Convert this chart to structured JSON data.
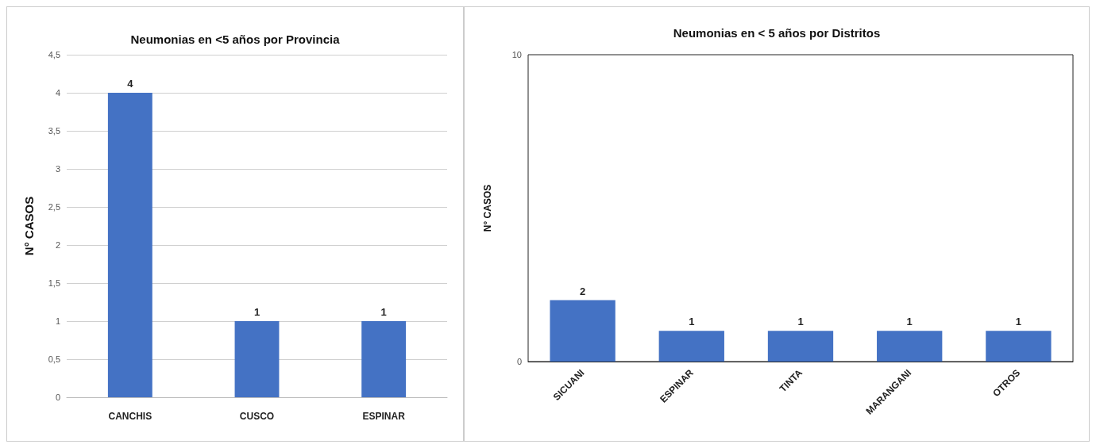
{
  "chart_data": [
    {
      "type": "bar",
      "title": "Neumonias en <5 años por Provincia",
      "ylabel": "N° CASOS",
      "categories": [
        "CANCHIS",
        "CUSCO",
        "ESPINAR"
      ],
      "values": [
        4,
        1,
        1
      ],
      "color": "#4472c4",
      "ylim": [
        0,
        4.5
      ],
      "yticks": [
        0,
        {
          "value": 0.5,
          "label": "0,5"
        },
        1,
        {
          "value": 1.5,
          "label": "1,5"
        },
        2,
        {
          "value": 2.5,
          "label": "2,5"
        },
        3,
        {
          "value": 3.5,
          "label": "3,5"
        },
        4,
        {
          "value": 4.5,
          "label": "4,5"
        }
      ],
      "grid": "y",
      "data_labels": true
    },
    {
      "type": "bar",
      "title": "Neumonias en < 5 años por Distritos",
      "ylabel": "N° CASOS",
      "categories": [
        "SICUANI",
        "ESPINAR",
        "TINTA",
        "MARANGANI",
        "OTROS"
      ],
      "values": [
        2,
        1,
        1,
        1,
        1
      ],
      "color": "#4472c4",
      "ylim": [
        0,
        10
      ],
      "yticks": [
        0,
        10
      ],
      "grid": false,
      "data_labels": true
    }
  ]
}
